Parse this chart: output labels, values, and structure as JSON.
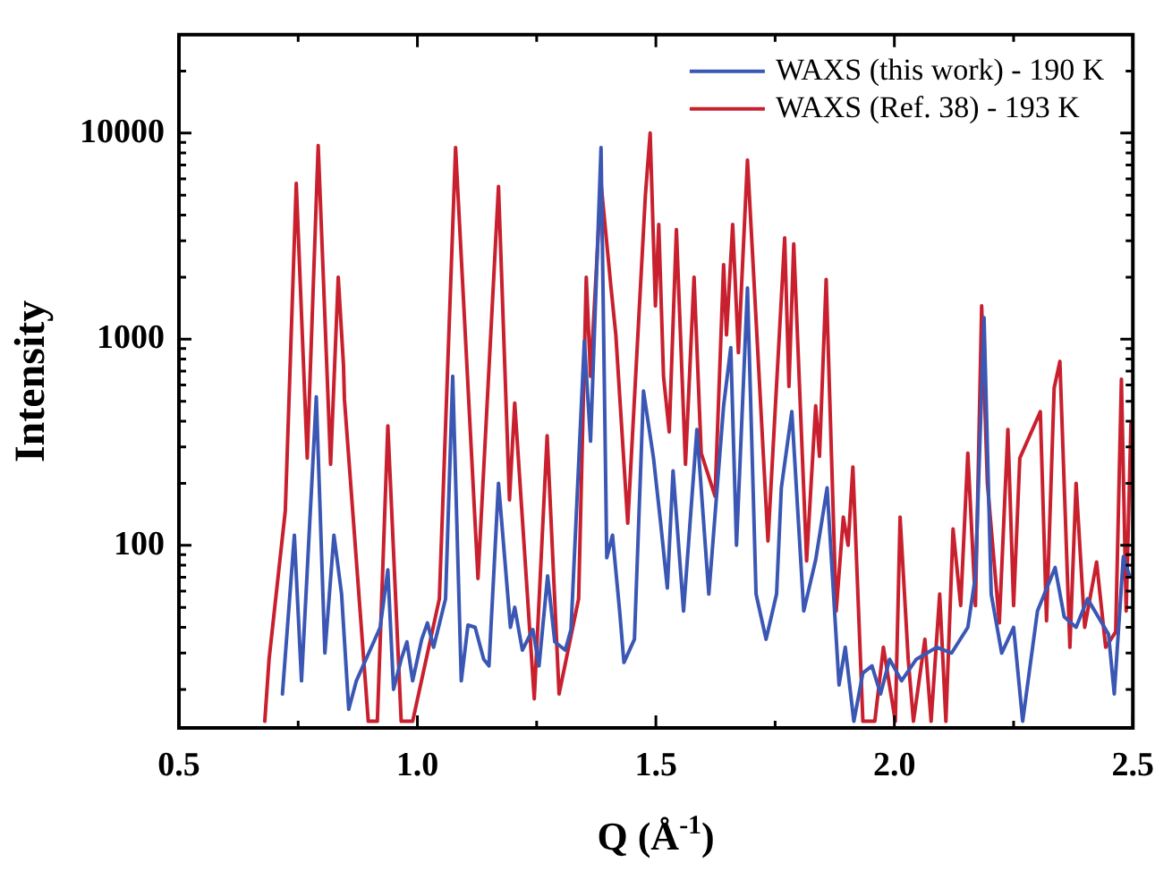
{
  "chart_data": {
    "type": "line",
    "xlabel": "Q (Å$^{-1}$)",
    "ylabel": "Intensity",
    "log": "y",
    "legend": "top right",
    "marker": "none",
    "line_style": "solid",
    "xlim": [
      0.5,
      2.5
    ],
    "xticks": [
      0.5,
      {
        "value": 0.75,
        "label": null
      },
      {
        "value": 1,
        "label": "1.0"
      },
      {
        "value": 1.25,
        "label": null
      },
      1.5,
      {
        "value": 1.75,
        "label": null
      },
      {
        "value": 2,
        "label": "2.0"
      },
      {
        "value": 2.25,
        "label": null
      },
      2.5
    ],
    "ylim": [
      13,
      30000
    ],
    "yticks": [
      {
        "value": 20,
        "label": null
      },
      {
        "value": 30,
        "label": null
      },
      {
        "value": 40,
        "label": null
      },
      {
        "value": 50,
        "label": null
      },
      {
        "value": 60,
        "label": null
      },
      {
        "value": 70,
        "label": null
      },
      {
        "value": 80,
        "label": null
      },
      {
        "value": 90,
        "label": null
      },
      100,
      {
        "value": 200,
        "label": null
      },
      {
        "value": 300,
        "label": null
      },
      {
        "value": 400,
        "label": null
      },
      {
        "value": 500,
        "label": null
      },
      {
        "value": 600,
        "label": null
      },
      {
        "value": 700,
        "label": null
      },
      {
        "value": 800,
        "label": null
      },
      {
        "value": 900,
        "label": null
      },
      1000,
      {
        "value": 2000,
        "label": null
      },
      {
        "value": 3000,
        "label": null
      },
      {
        "value": 4000,
        "label": null
      },
      {
        "value": 5000,
        "label": null
      },
      {
        "value": 6000,
        "label": null
      },
      {
        "value": 7000,
        "label": null
      },
      {
        "value": 8000,
        "label": null
      },
      {
        "value": 9000,
        "label": null
      },
      10000,
      {
        "value": 20000,
        "label": null
      }
    ],
    "series": [
      {
        "name": "WAXS (this work) - 190 K",
        "color": "#3b57b4",
        "x": [
          0.717,
          0.742,
          0.757,
          0.788,
          0.806,
          0.825,
          0.841,
          0.856,
          0.872,
          0.922,
          0.938,
          0.95,
          0.966,
          0.978,
          0.99,
          1.009,
          1.021,
          1.034,
          1.059,
          1.074,
          1.092,
          1.106,
          1.121,
          1.139,
          1.15,
          1.17,
          1.195,
          1.204,
          1.22,
          1.242,
          1.255,
          1.273,
          1.288,
          1.31,
          1.322,
          1.35,
          1.363,
          1.385,
          1.397,
          1.409,
          1.424,
          1.433,
          1.455,
          1.474,
          1.495,
          1.51,
          1.524,
          1.536,
          1.558,
          1.586,
          1.611,
          1.642,
          1.657,
          1.669,
          1.692,
          1.71,
          1.731,
          1.753,
          1.763,
          1.785,
          1.81,
          1.835,
          1.859,
          1.884,
          1.897,
          1.915,
          1.934,
          1.953,
          1.971,
          1.99,
          2.015,
          2.046,
          2.089,
          2.12,
          2.154,
          2.17,
          2.188,
          2.203,
          2.225,
          2.25,
          2.269,
          2.3,
          2.337,
          2.356,
          2.381,
          2.405,
          2.449,
          2.461,
          2.48,
          2.493
        ],
        "values": [
          19,
          112,
          22,
          525,
          30,
          112,
          58,
          16,
          22,
          40,
          76,
          20,
          28,
          34,
          22,
          35,
          42,
          32,
          55,
          660,
          22,
          41,
          40,
          28,
          26,
          200,
          40,
          50,
          31,
          39,
          26,
          71,
          34,
          31,
          39,
          980,
          320,
          8500,
          87,
          112,
          48,
          27,
          35,
          560,
          265,
          128,
          62,
          230,
          48,
          365,
          58,
          475,
          910,
          100,
          1770,
          58,
          35,
          58,
          190,
          445,
          48,
          85,
          190,
          21,
          32,
          14,
          24,
          26,
          19,
          28,
          22,
          28,
          32,
          30,
          40,
          71,
          1270,
          58,
          30,
          40,
          14,
          48,
          78,
          45,
          40,
          55,
          37,
          19,
          88,
          71
        ]
      },
      {
        "name": "WAXS (Ref. 38) - 193 K",
        "color": "#c8202e",
        "x": [
          0.68,
          0.689,
          0.723,
          0.746,
          0.769,
          0.792,
          0.818,
          0.834,
          0.845,
          0.847,
          0.897,
          0.916,
          0.938,
          0.966,
          0.99,
          1.046,
          1.08,
          1.127,
          1.17,
          1.193,
          1.204,
          1.245,
          1.272,
          1.297,
          1.338,
          1.354,
          1.363,
          1.385,
          1.406,
          1.416,
          1.441,
          1.478,
          1.488,
          1.499,
          1.506,
          1.516,
          1.528,
          1.543,
          1.562,
          1.58,
          1.595,
          1.624,
          1.642,
          1.648,
          1.661,
          1.673,
          1.692,
          1.735,
          1.77,
          1.779,
          1.789,
          1.816,
          1.835,
          1.843,
          1.857,
          1.878,
          1.893,
          1.903,
          1.913,
          1.934,
          1.959,
          1.977,
          2.002,
          2.012,
          2.029,
          2.04,
          2.064,
          2.077,
          2.095,
          2.108,
          2.123,
          2.139,
          2.154,
          2.17,
          2.183,
          2.195,
          2.22,
          2.238,
          2.25,
          2.263,
          2.306,
          2.319,
          2.335,
          2.347,
          2.368,
          2.381,
          2.399,
          2.424,
          2.443,
          2.464,
          2.476,
          2.486,
          2.496
        ],
        "values": [
          14,
          28,
          147,
          5700,
          265,
          8700,
          247,
          2000,
          750,
          510,
          14,
          14,
          380,
          14,
          14,
          55,
          8500,
          69,
          5500,
          166,
          490,
          18,
          340,
          19,
          55,
          2000,
          660,
          5700,
          1770,
          1050,
          128,
          5000,
          10000,
          1450,
          3600,
          660,
          355,
          3400,
          247,
          2000,
          280,
          173,
          2300,
          1050,
          3600,
          860,
          7400,
          105,
          3100,
          590,
          2900,
          84,
          475,
          270,
          1950,
          48,
          137,
          100,
          240,
          14,
          14,
          32,
          14,
          137,
          28,
          14,
          35,
          14,
          58,
          14,
          120,
          51,
          280,
          51,
          1450,
          200,
          42,
          365,
          51,
          265,
          445,
          43,
          580,
          780,
          32,
          200,
          40,
          83,
          32,
          38,
          640,
          48,
          390
        ]
      }
    ]
  }
}
